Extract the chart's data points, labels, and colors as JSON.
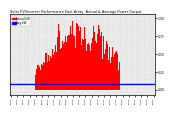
{
  "title": "Solar PV/Inverter Performance East Array  Actual & Average Power Output",
  "background_color": "#ffffff",
  "plot_bg_color": "#e8e8e8",
  "grid_color": "#ffffff",
  "bar_color": "#ff0000",
  "avg_line_color": "#0000ff",
  "avg_value": 0.08,
  "ylim_min": -0.08,
  "ylim_max": 1.05,
  "num_bars": 144,
  "legend_actual": "Actual kW",
  "legend_avg": "Avg kW",
  "ytick_values": [
    0.0,
    0.25,
    0.5,
    0.75,
    1.0
  ],
  "seed": 7
}
